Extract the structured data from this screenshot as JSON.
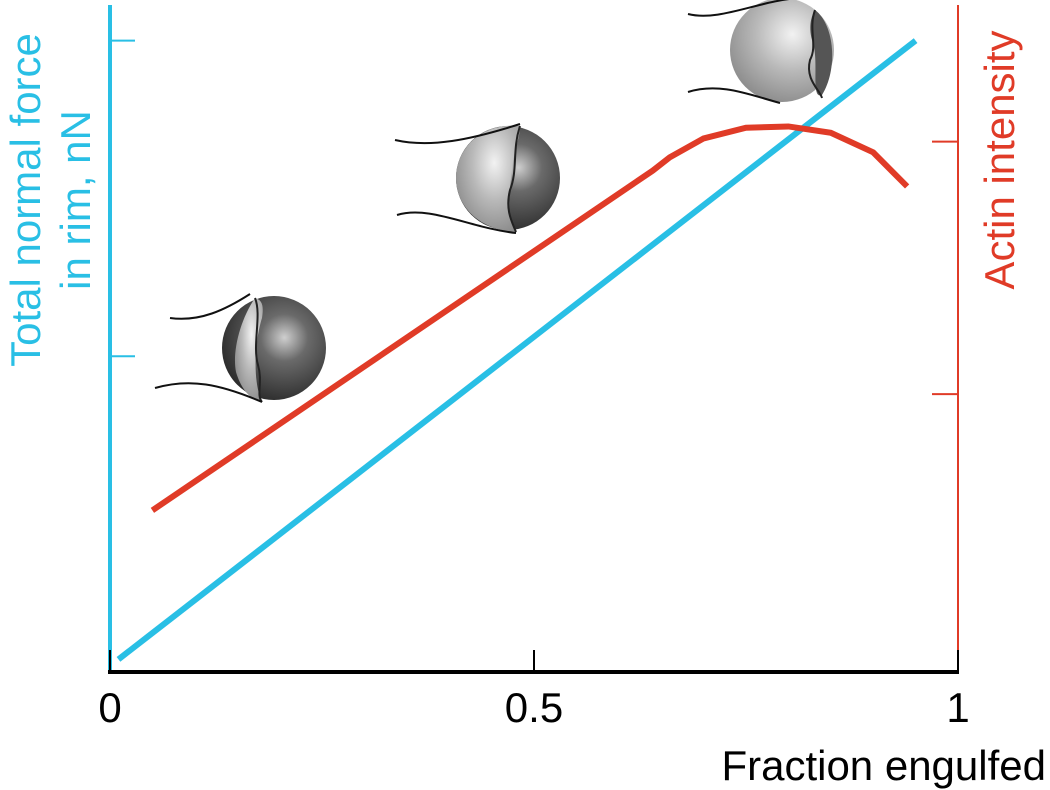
{
  "chart_data": {
    "type": "line",
    "x_label": "Fraction engulfed",
    "y_label": [
      "Total normal force",
      "in rim, nN"
    ],
    "y2_label": "Actin intensity",
    "xlim": [
      0,
      1
    ],
    "xticks": [
      0,
      0.5,
      1
    ],
    "ylim": [
      0,
      1.05
    ],
    "yticks": [
      0.5,
      1
    ],
    "y2lim": [
      0,
      1.05
    ],
    "y2ticks": [
      0.44,
      0.84
    ],
    "y_color": "#29bfe5",
    "y2_color": "#e03b27",
    "series": [
      {
        "color": "#29bfe5",
        "x": [
          0.01,
          0.95
        ],
        "values": [
          0.02,
          1.0
        ]
      },
      {
        "color": "#e03b27",
        "axis": "y2",
        "x": [
          0.05,
          0.64,
          0.66,
          0.7,
          0.75,
          0.8,
          0.85,
          0.9,
          0.94
        ],
        "values": [
          0.256,
          0.794,
          0.815,
          0.845,
          0.862,
          0.864,
          0.854,
          0.823,
          0.769
        ]
      }
    ]
  }
}
